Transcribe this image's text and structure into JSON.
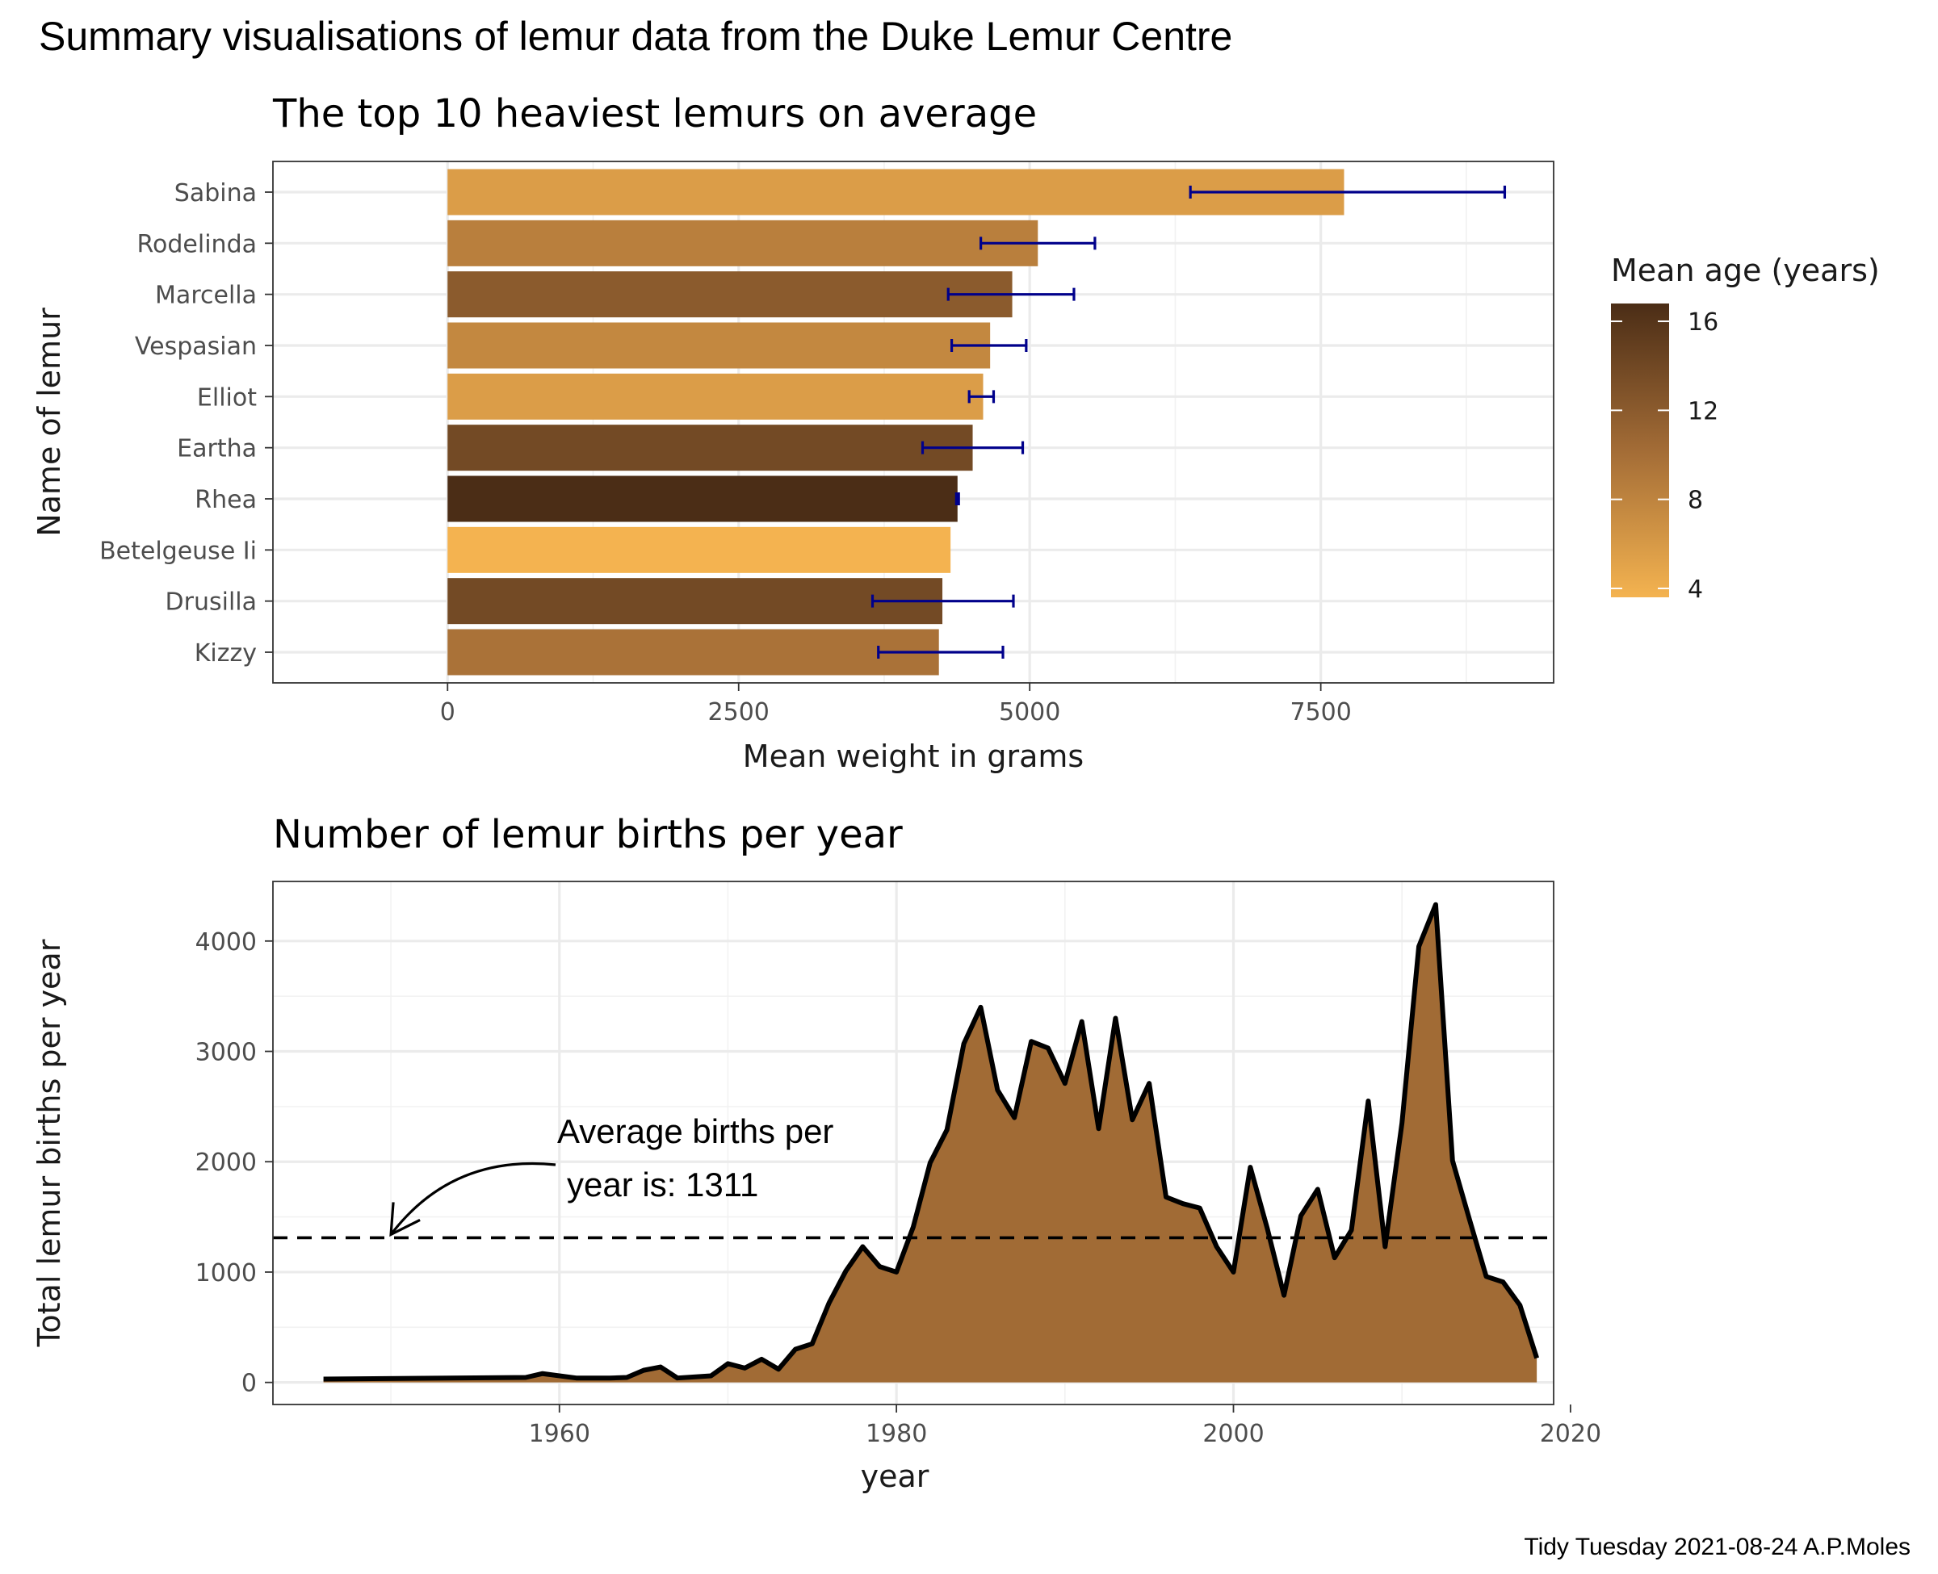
{
  "figure": {
    "title": "Summary visualisations of lemur data from the Duke Lemur Centre",
    "caption": "Tidy Tuesday 2021-08-24 A.P.Moles"
  },
  "colors": {
    "panel_border": "#333333",
    "grid": "#ebebeb",
    "error_bar": "#00008b",
    "area_fill": "#a16b35",
    "line": "#000000",
    "gradient_low": "#f4b350",
    "gradient_high": "#4b2d16"
  },
  "chart_data": [
    {
      "type": "bar",
      "orientation": "horizontal",
      "title": "The top 10 heaviest lemurs on average",
      "xlabel": "Mean weight in grams",
      "ylabel": "Name of lemur",
      "xlim": [
        -1500,
        9500
      ],
      "xticks": [
        0,
        2500,
        5000,
        7500
      ],
      "grid": true,
      "categories": [
        "Sabina",
        "Rodelinda",
        "Marcella",
        "Vespasian",
        "Elliot",
        "Eartha",
        "Rhea",
        "Betelgeuse Ii",
        "Drusilla",
        "Kizzy"
      ],
      "values": [
        7700,
        5070,
        4850,
        4660,
        4600,
        4510,
        4380,
        4320,
        4250,
        4220
      ],
      "error_low": [
        6380,
        4580,
        4300,
        4330,
        4480,
        4080,
        4370,
        null,
        3650,
        3700
      ],
      "error_high": [
        9080,
        5560,
        5380,
        4970,
        4690,
        4940,
        4390,
        null,
        4860,
        4770
      ],
      "mean_age_years": [
        5.6,
        8.4,
        12.0,
        7.6,
        5.6,
        13.8,
        16.8,
        3.6,
        13.8,
        9.6
      ],
      "legend": {
        "title": "Mean age (years)",
        "placement": "right",
        "range": [
          3.6,
          16.8
        ],
        "ticks": [
          4,
          8,
          12,
          16
        ]
      }
    },
    {
      "type": "area",
      "title": "Number of lemur births per year",
      "xlabel": "year",
      "ylabel": "Total lemur births per year",
      "xlim": [
        1943,
        2019
      ],
      "ylim": [
        -200,
        4540
      ],
      "xticks": [
        1960,
        1980,
        2000,
        2020
      ],
      "yticks": [
        0,
        1000,
        2000,
        3000,
        4000
      ],
      "grid": true,
      "x": [
        1946,
        1958,
        1959,
        1961,
        1963,
        1964,
        1965,
        1966,
        1967,
        1969,
        1970,
        1971,
        1972,
        1973,
        1974,
        1975,
        1976,
        1977,
        1978,
        1979,
        1980,
        1981,
        1982,
        1983,
        1984,
        1985,
        1986,
        1987,
        1988,
        1989,
        1990,
        1991,
        1992,
        1993,
        1994,
        1995,
        1996,
        1997,
        1998,
        1999,
        2000,
        2001,
        2002,
        2003,
        2004,
        2005,
        2006,
        2007,
        2008,
        2009,
        2010,
        2011,
        2012,
        2013,
        2014,
        2015,
        2016,
        2017,
        2018
      ],
      "values": [
        30,
        45,
        80,
        40,
        40,
        45,
        110,
        140,
        40,
        60,
        170,
        130,
        210,
        120,
        300,
        350,
        720,
        1010,
        1230,
        1050,
        1000,
        1410,
        1990,
        2290,
        3070,
        3400,
        2650,
        2400,
        3090,
        3030,
        2710,
        3270,
        2300,
        3300,
        2380,
        2710,
        1680,
        1620,
        1580,
        1230,
        1000,
        1950,
        1400,
        790,
        1510,
        1750,
        1130,
        1380,
        2550,
        1230,
        2350,
        3950,
        4330,
        2010,
        1480,
        960,
        910,
        700,
        220
      ],
      "reference_line": {
        "y": 1311,
        "style": "dashed"
      },
      "annotation": {
        "line1": "Average births per",
        "line2": "year is: 1311",
        "arrow_to_x": 1950,
        "arrow_to_y": 1311
      }
    }
  ]
}
